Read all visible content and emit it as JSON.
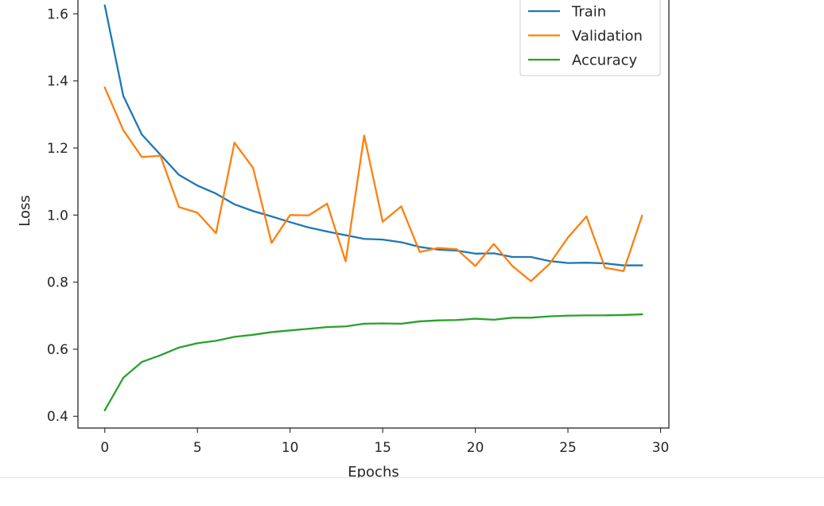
{
  "chart_data": {
    "type": "line",
    "title": "",
    "xlabel": "Epochs",
    "ylabel": "Loss",
    "xlim": [
      -1.45,
      30.45
    ],
    "ylim": [
      0.365,
      1.665
    ],
    "xticks": [
      0,
      5,
      10,
      15,
      20,
      25,
      30
    ],
    "xtick_labels": [
      "0",
      "5",
      "10",
      "15",
      "20",
      "25",
      "30"
    ],
    "yticks": [
      0.4,
      0.6,
      0.8,
      1.0,
      1.2,
      1.4,
      1.6
    ],
    "ytick_labels": [
      "0.4",
      "0.6",
      "0.8",
      "1.0",
      "1.2",
      "1.4",
      "1.6"
    ],
    "grid": false,
    "legend_position": "upper right",
    "x": [
      0,
      1,
      2,
      3,
      4,
      5,
      6,
      7,
      8,
      9,
      10,
      11,
      12,
      13,
      14,
      15,
      16,
      17,
      18,
      19,
      20,
      21,
      22,
      23,
      24,
      25,
      26,
      27,
      28,
      29
    ],
    "series": [
      {
        "name": "Train",
        "color": "#1f77b4",
        "values": [
          1.625,
          1.355,
          1.24,
          1.18,
          1.12,
          1.088,
          1.064,
          1.032,
          1.012,
          0.996,
          0.979,
          0.963,
          0.951,
          0.94,
          0.929,
          0.927,
          0.919,
          0.905,
          0.897,
          0.894,
          0.885,
          0.886,
          0.875,
          0.875,
          0.863,
          0.857,
          0.858,
          0.856,
          0.85,
          0.85
        ]
      },
      {
        "name": "Validation",
        "color": "#ff7f0e",
        "values": [
          1.38,
          1.253,
          1.173,
          1.177,
          1.024,
          1.007,
          0.946,
          1.216,
          1.141,
          0.917,
          1.0,
          0.999,
          1.034,
          0.862,
          1.237,
          0.98,
          1.026,
          0.89,
          0.902,
          0.898,
          0.848,
          0.914,
          0.848,
          0.803,
          0.854,
          0.933,
          0.996,
          0.843,
          0.833,
          0.998
        ]
      },
      {
        "name": "Accuracy",
        "color": "#2ca02c",
        "values": [
          0.418,
          0.515,
          0.562,
          0.582,
          0.605,
          0.618,
          0.625,
          0.637,
          0.643,
          0.651,
          0.656,
          0.661,
          0.666,
          0.668,
          0.676,
          0.677,
          0.676,
          0.683,
          0.686,
          0.687,
          0.691,
          0.688,
          0.694,
          0.694,
          0.698,
          0.7,
          0.701,
          0.701,
          0.702,
          0.704
        ]
      }
    ]
  }
}
